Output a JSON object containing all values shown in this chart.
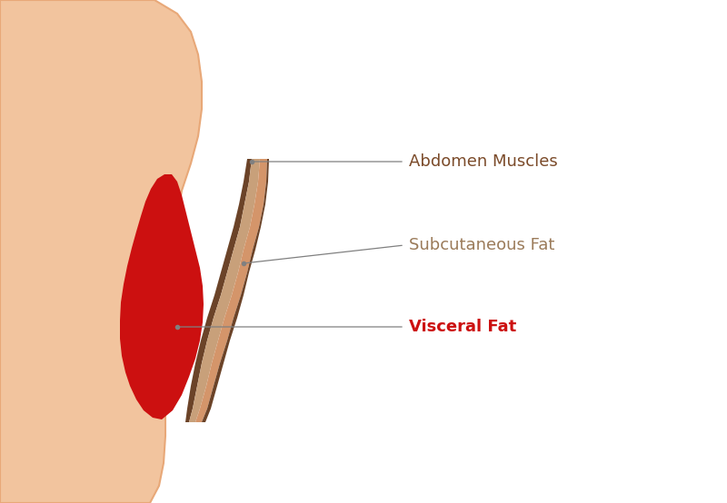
{
  "background_color": "#ffffff",
  "body_color": "#F2C49E",
  "body_outline_color": "#E8A878",
  "skin_layer_color": "#D4956A",
  "fat_layer_color": "#C8A07A",
  "muscle_color": "#8B6348",
  "muscle_outer_color": "#6B4328",
  "visceral_fat_color": "#CC1010",
  "label_muscle": "Abdomen Muscles",
  "label_subcut": "Subcutaneous Fat",
  "label_visceral": "Visceral Fat",
  "label_color_muscle": "#7B4B2A",
  "label_color_subcut": "#9B7B5A",
  "label_color_visceral": "#CC1010",
  "line_color": "#808080",
  "font_size": 13
}
